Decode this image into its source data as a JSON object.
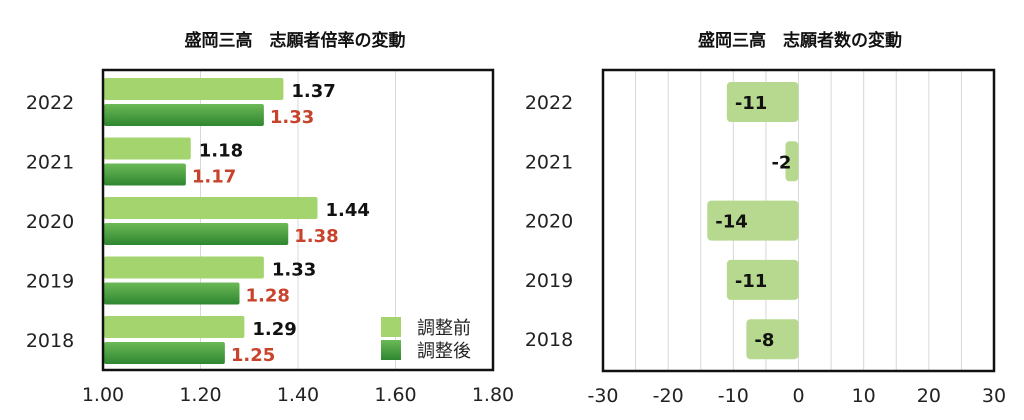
{
  "chart_data": [
    {
      "type": "bar",
      "title": "盛岡三高　志願者倍率の変動",
      "categories": [
        "2022",
        "2021",
        "2020",
        "2019",
        "2018"
      ],
      "series": [
        {
          "name": "調整前",
          "values": [
            1.37,
            1.18,
            1.44,
            1.33,
            1.29
          ],
          "color": "#a3d46e",
          "label_color": "#111111"
        },
        {
          "name": "調整後",
          "values": [
            1.33,
            1.17,
            1.38,
            1.28,
            1.25
          ],
          "color": "#3f9a3a",
          "label_color": "#c8432c"
        }
      ],
      "xlim": [
        1.0,
        1.8
      ],
      "xticks": [
        "1.00",
        "1.20",
        "1.40",
        "1.60",
        "1.80"
      ],
      "grid": true,
      "legend": "bottom-right"
    },
    {
      "type": "bar",
      "title": "盛岡三高　志願者数の変動",
      "categories": [
        "2022",
        "2021",
        "2020",
        "2019",
        "2018"
      ],
      "values": [
        -11,
        -2,
        -14,
        -11,
        -8
      ],
      "color": "#b6d98f",
      "xlim": [
        -30,
        30
      ],
      "xticks": [
        "-30",
        "-20",
        "-10",
        "0",
        "10",
        "20",
        "30"
      ],
      "grid": true
    }
  ]
}
